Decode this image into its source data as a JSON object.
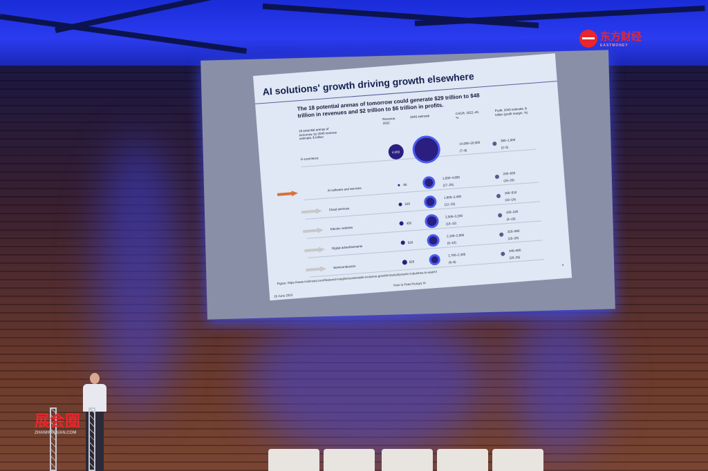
{
  "slide": {
    "title": "AI solutions' growth driving growth elsewhere",
    "subtitle": "The 18 potential arenas of tomorrow could generate $29 trillion to $48 trillion in revenues and $2 trillion to $6 trillion in profits.",
    "col_arenas": "18 potential arenas of tomorrow, by 2040 revenue estimate, $ trillion",
    "col_revenue": "Revenue, 2022",
    "col_estimate": "2040 estimate",
    "col_cagr": "CAGR, 2022–40, %",
    "col_profit": "Profit, 2040 estimate, $ billion (profit margin, %)",
    "rows": [
      {
        "name": "E-commerce",
        "revenue": "4,000",
        "estimate": "14,000–20,000",
        "cagr": "(7–9)",
        "profit": "380–1,000",
        "margin": "(2–5)",
        "highlight": false
      },
      {
        "name": "AI software and services",
        "revenue": "85",
        "estimate": "1,500–4,600",
        "cagr": "(17–25)",
        "profit": "230–930",
        "margin": "(15–20)",
        "highlight": true
      },
      {
        "name": "Cloud services",
        "revenue": "220",
        "estimate": "1,600–3,400",
        "cagr": "(12–15)",
        "profit": "160–510",
        "margin": "(10–15)",
        "highlight": false
      },
      {
        "name": "Electric vehicles",
        "revenue": "450",
        "estimate": "2,500–3,200",
        "cagr": "(10–12)",
        "profit": "100–320",
        "margin": "(4–10)",
        "highlight": false
      },
      {
        "name": "Digital advertisements",
        "revenue": "520",
        "estimate": "2,100–2,900",
        "cagr": "(8–10)",
        "profit": "320–580",
        "margin": "(15–20)",
        "highlight": false
      },
      {
        "name": "Semiconductors",
        "revenue": "620",
        "estimate": "1,700–2,400",
        "cagr": "(6–8)",
        "profit": "340–600",
        "margin": "(20–25)",
        "highlight": false
      }
    ],
    "figure_source": "Figure: https://www.mckinsey.com/featured-insights/sustainable-inclusive-growth/charts/dynamic-industries-to-watch/",
    "footer_center": "How to Feed Hungry AI",
    "footer_date": "19 June 2023",
    "page_number": "4"
  },
  "watermarks": {
    "top_right": "东方财经",
    "top_right_sub": "EASTMONEY",
    "bottom_left": "展会圈",
    "bottom_left_sub": "ZHANHUIQUAN.COM"
  },
  "colors": {
    "accent": "#2a1f80",
    "ring": "#4a5cf0",
    "highlight_arrow": "#d9703a",
    "stage_light": "#2b3cf0"
  }
}
